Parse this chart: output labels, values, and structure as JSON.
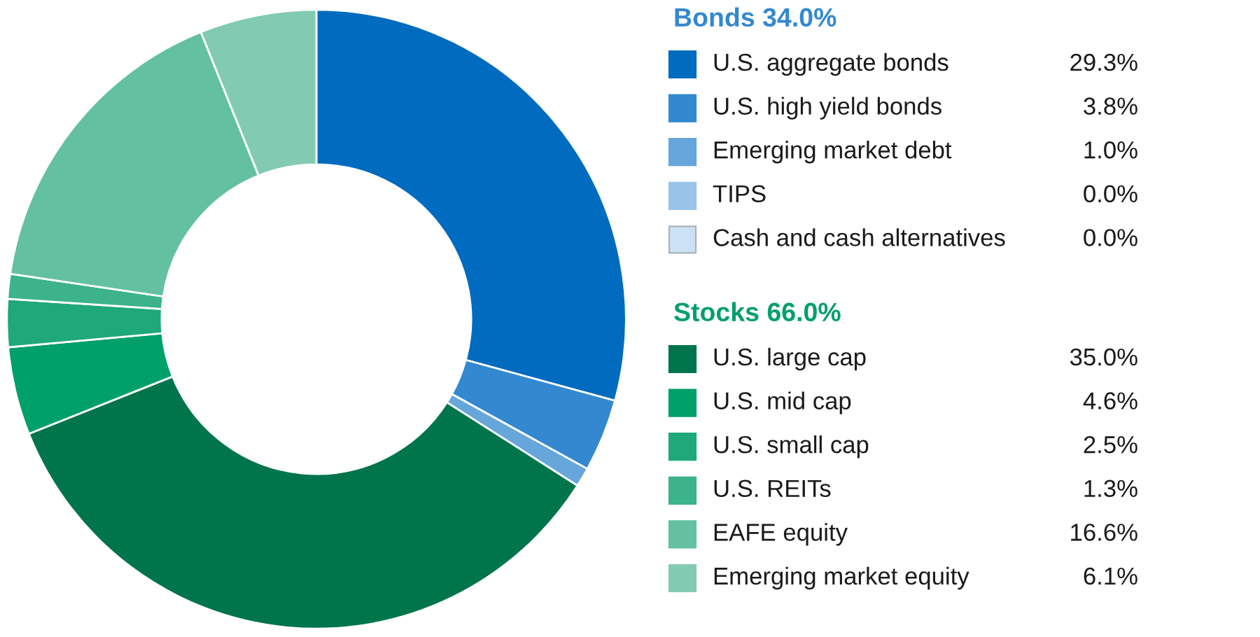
{
  "chart_data": {
    "type": "donut",
    "categories": [
      "U.S. aggregate bonds",
      "U.S. high yield bonds",
      "Emerging market debt",
      "TIPS",
      "Cash and cash alternatives",
      "U.S. large cap",
      "U.S. mid cap",
      "U.S. small cap",
      "U.S. REITs",
      "EAFE equity",
      "Emerging market equity"
    ],
    "values": [
      29.3,
      3.8,
      1.0,
      0.0,
      0.0,
      35.0,
      4.6,
      2.5,
      1.3,
      16.6,
      6.1
    ],
    "value_labels": [
      "29.3%",
      "3.8%",
      "1.0%",
      "0.0%",
      "0.0%",
      "35.0%",
      "4.6%",
      "2.5%",
      "1.3%",
      "16.6%",
      "6.1%"
    ],
    "colors": [
      "#006bbf",
      "#3388d0",
      "#66a6da",
      "#99c4e8",
      "#cce1f3",
      "#00754c",
      "#00a06a",
      "#1fa87a",
      "#3cb38a",
      "#63c1a2",
      "#82cbb2"
    ],
    "annotations": [
      "Bonds 34.0%",
      "Stocks 66.0%"
    ],
    "legend": "right"
  }
}
